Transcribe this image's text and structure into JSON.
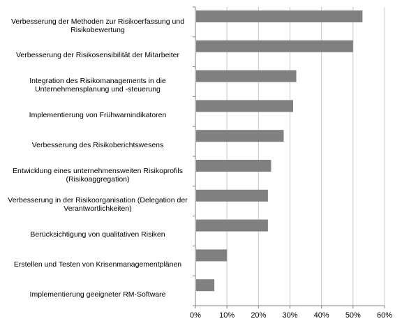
{
  "chart_data": {
    "type": "bar",
    "orientation": "horizontal",
    "categories": [
      "Verbesserung der Methoden zur Risikoerfassung und\nRisikobewertung",
      "Verbesserung der Risikosensibilität der Mitarbeiter",
      "Integration des Risikomanagements in die\nUnternehmensplanung und -steuerung",
      "Implementierung von Frühwarnindikatoren",
      "Verbesserung des Risikoberichtswesens",
      "Entwicklung eines unternehmensweiten Risikoprofils\n(Risikoaggregation)",
      "Verbesserung in der Risikoorganisation (Delegation der\nVerantwortlichkeiten)",
      "Berücksichtigung von qualitativen Risiken",
      "Erstellen und Testen von Krisenmanagementplänen",
      "Implementierung geeigneter RM-Software"
    ],
    "values": [
      53,
      50,
      32,
      31,
      28,
      24,
      23,
      23,
      10,
      6
    ],
    "xlim": [
      0,
      60
    ],
    "xticks": [
      "0%",
      "10%",
      "20%",
      "30%",
      "40%",
      "50%",
      "60%"
    ],
    "grid": true,
    "bar_color": "#808080",
    "title": "",
    "xlabel": "",
    "ylabel": ""
  }
}
